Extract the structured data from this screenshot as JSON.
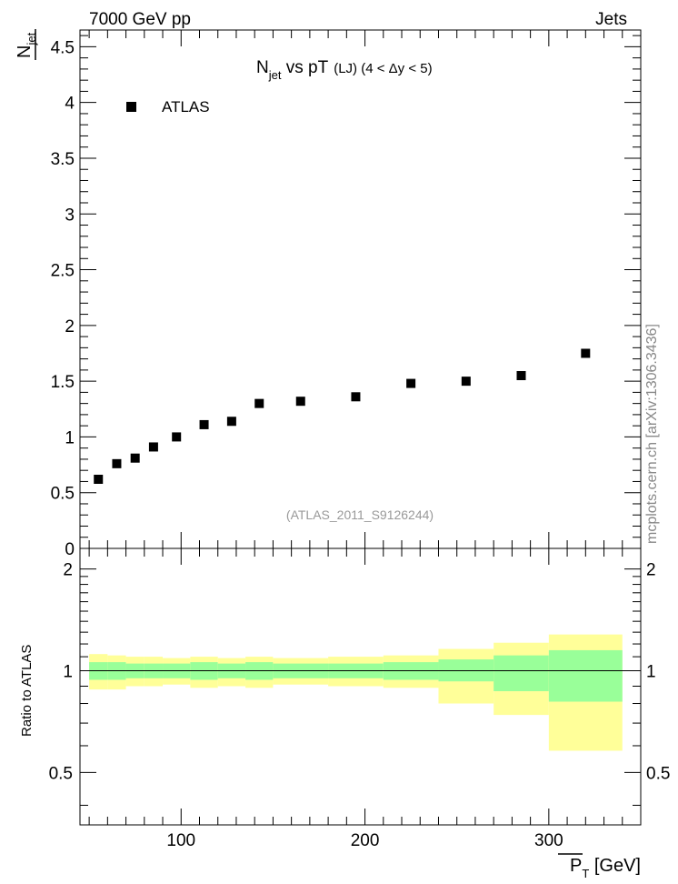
{
  "header": {
    "energy": "7000 GeV pp",
    "category": "Jets"
  },
  "side_label": "mcplots.cern.ch [arXiv:1306.3436]",
  "watermark": "(ATLAS_2011_S9126244)",
  "colors": {
    "band_inner": "#99ff99",
    "band_outer": "#ffff99",
    "marker": "#000000",
    "watermark": "#999999",
    "side_label": "#888888"
  },
  "chart_data": [
    {
      "type": "scatter",
      "title": {
        "main": "N",
        "sub": "jet",
        "rest": " vs pT",
        "tag": "(LJ) (4 < Δy < 5)"
      },
      "ylabel": {
        "over": "N",
        "sub": "jet"
      },
      "xlim": [
        45,
        350
      ],
      "ylim": [
        0,
        4.65
      ],
      "yticks": [
        0,
        0.5,
        1,
        1.5,
        2,
        2.5,
        3,
        3.5,
        4,
        4.5
      ],
      "ytick_labels": [
        "0",
        "0.5",
        "1",
        "1.5",
        "2",
        "2.5",
        "3",
        "3.5",
        "4",
        "4.5"
      ],
      "legend": "ATLAS",
      "series": [
        {
          "name": "ATLAS",
          "x": [
            55,
            65,
            75,
            85,
            97.5,
            112.5,
            127.5,
            142.5,
            165,
            195,
            225,
            255,
            285,
            320
          ],
          "y": [
            0.62,
            0.76,
            0.81,
            0.91,
            1.0,
            1.11,
            1.14,
            1.3,
            1.32,
            1.36,
            1.48,
            1.5,
            1.55,
            1.75
          ]
        }
      ]
    },
    {
      "type": "area",
      "ylabel": "Ratio to ATLAS",
      "xlabel": {
        "main": "P",
        "sub": "T",
        "unit": " [GeV]"
      },
      "xlim": [
        45,
        350
      ],
      "ylim": [
        0.35,
        2.3
      ],
      "xticks": [
        100,
        200,
        300
      ],
      "xtick_labels": [
        "100",
        "200",
        "300"
      ],
      "yticks": [
        0.5,
        1,
        2
      ],
      "ytick_labels": [
        "0.5",
        "1",
        "2"
      ],
      "reference_line": 1,
      "bin_edges": [
        50,
        60,
        70,
        80,
        90,
        105,
        120,
        135,
        150,
        180,
        210,
        240,
        270,
        300,
        340
      ],
      "band_inner_low": [
        0.94,
        0.94,
        0.95,
        0.95,
        0.95,
        0.94,
        0.95,
        0.94,
        0.95,
        0.95,
        0.94,
        0.93,
        0.87,
        0.81
      ],
      "band_inner_high": [
        1.06,
        1.06,
        1.05,
        1.05,
        1.05,
        1.06,
        1.05,
        1.06,
        1.05,
        1.05,
        1.06,
        1.08,
        1.11,
        1.15
      ],
      "band_outer_low": [
        0.88,
        0.88,
        0.9,
        0.9,
        0.91,
        0.89,
        0.9,
        0.89,
        0.91,
        0.9,
        0.89,
        0.8,
        0.74,
        0.58
      ],
      "band_outer_high": [
        1.12,
        1.11,
        1.1,
        1.1,
        1.09,
        1.1,
        1.09,
        1.1,
        1.09,
        1.1,
        1.11,
        1.16,
        1.21,
        1.28
      ]
    }
  ]
}
